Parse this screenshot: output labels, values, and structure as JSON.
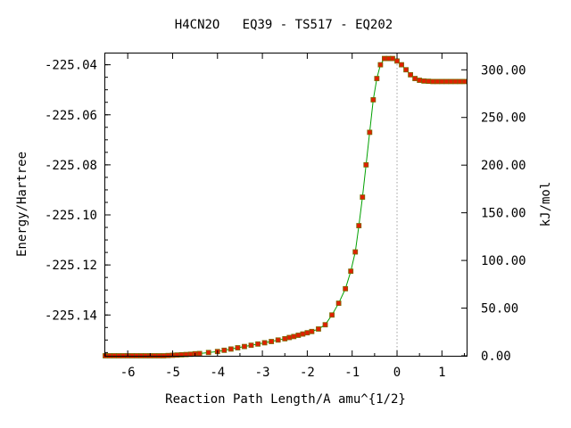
{
  "chart_data": {
    "type": "line",
    "title": "H4CN2O   EQ39 - TS517 - EQ202",
    "xlabel": "Reaction Path Length/A amu^{1/2}",
    "ylabel_left": "Energy/Hartree",
    "ylabel_right": "kJ/mol",
    "xlim": [
      -6.5,
      1.55
    ],
    "ylim_left": [
      -225.1563,
      -225.0355
    ],
    "ylim_right": [
      0,
      317.1
    ],
    "x_ticks": [
      -6,
      -5,
      -4,
      -3,
      -2,
      -1,
      0,
      1
    ],
    "x_tick_labels": [
      "-6",
      "-5",
      "-4",
      "-3",
      "-2",
      "-1",
      "0",
      "1"
    ],
    "y_left_ticks": [
      -225.04,
      -225.06,
      -225.08,
      -225.1,
      -225.12,
      -225.14
    ],
    "y_left_tick_labels": [
      "-225.04",
      "-225.06",
      "-225.08",
      "-225.10",
      "-225.12",
      "-225.14"
    ],
    "y_right_ticks": [
      300,
      250,
      200,
      150,
      100,
      50,
      0
    ],
    "y_right_tick_labels": [
      "300.00",
      "250.00",
      "200.00",
      "150.00",
      "100.00",
      "50.00",
      "0.00"
    ],
    "vertical_marker_x": 0,
    "grid": false,
    "legend": "none",
    "colors": {
      "line": "#00a000",
      "marker_fill": "#e02000",
      "marker_edge": "#7a6a00",
      "marker_line": "#a0a0a0"
    },
    "series": [
      {
        "x": [
          -6.5,
          -6.4,
          -6.3,
          -6.2,
          -6.1,
          -6.0,
          -5.9,
          -5.8,
          -5.7,
          -5.6,
          -5.5,
          -5.4,
          -5.3,
          -5.2,
          -5.1,
          -5.0,
          -4.9,
          -4.8,
          -4.7,
          -4.6,
          -4.5,
          -4.4,
          -4.2,
          -4.0,
          -3.85,
          -3.7,
          -3.55,
          -3.4,
          -3.25,
          -3.1,
          -2.95,
          -2.8,
          -2.65,
          -2.5,
          -2.4,
          -2.3,
          -2.2,
          -2.1,
          -2.0,
          -1.9,
          -1.75,
          -1.6,
          -1.45,
          -1.3,
          -1.15,
          -1.03,
          -0.93,
          -0.85,
          -0.77,
          -0.69,
          -0.61,
          -0.53,
          -0.45,
          -0.37,
          -0.28,
          -0.19,
          -0.1,
          0.0,
          0.1,
          0.2,
          0.3,
          0.4,
          0.5,
          0.6,
          0.7,
          0.8,
          0.9,
          1.0,
          1.1,
          1.2,
          1.3,
          1.4,
          1.5
        ],
        "y": [
          -225.1563,
          -225.1563,
          -225.1563,
          -225.1563,
          -225.1563,
          -225.1563,
          -225.1563,
          -225.1563,
          -225.1563,
          -225.1563,
          -225.1563,
          -225.1563,
          -225.1563,
          -225.1563,
          -225.1562,
          -225.1561,
          -225.156,
          -225.1559,
          -225.1558,
          -225.1557,
          -225.1555,
          -225.1554,
          -225.155,
          -225.1546,
          -225.1541,
          -225.1536,
          -225.1531,
          -225.1526,
          -225.1521,
          -225.1516,
          -225.1511,
          -225.1506,
          -225.15,
          -225.1495,
          -225.149,
          -225.1486,
          -225.1481,
          -225.1476,
          -225.1471,
          -225.1466,
          -225.1456,
          -225.1439,
          -225.14,
          -225.1353,
          -225.1295,
          -225.1225,
          -225.1148,
          -225.1043,
          -225.0929,
          -225.08,
          -225.067,
          -225.054,
          -225.0455,
          -225.04,
          -225.0375,
          -225.0375,
          -225.0375,
          -225.0385,
          -225.04,
          -225.042,
          -225.044,
          -225.0455,
          -225.0462,
          -225.0465,
          -225.0466,
          -225.0467,
          -225.0467,
          -225.0467,
          -225.0467,
          -225.0467,
          -225.0467,
          -225.0467,
          -225.0467
        ]
      }
    ]
  }
}
